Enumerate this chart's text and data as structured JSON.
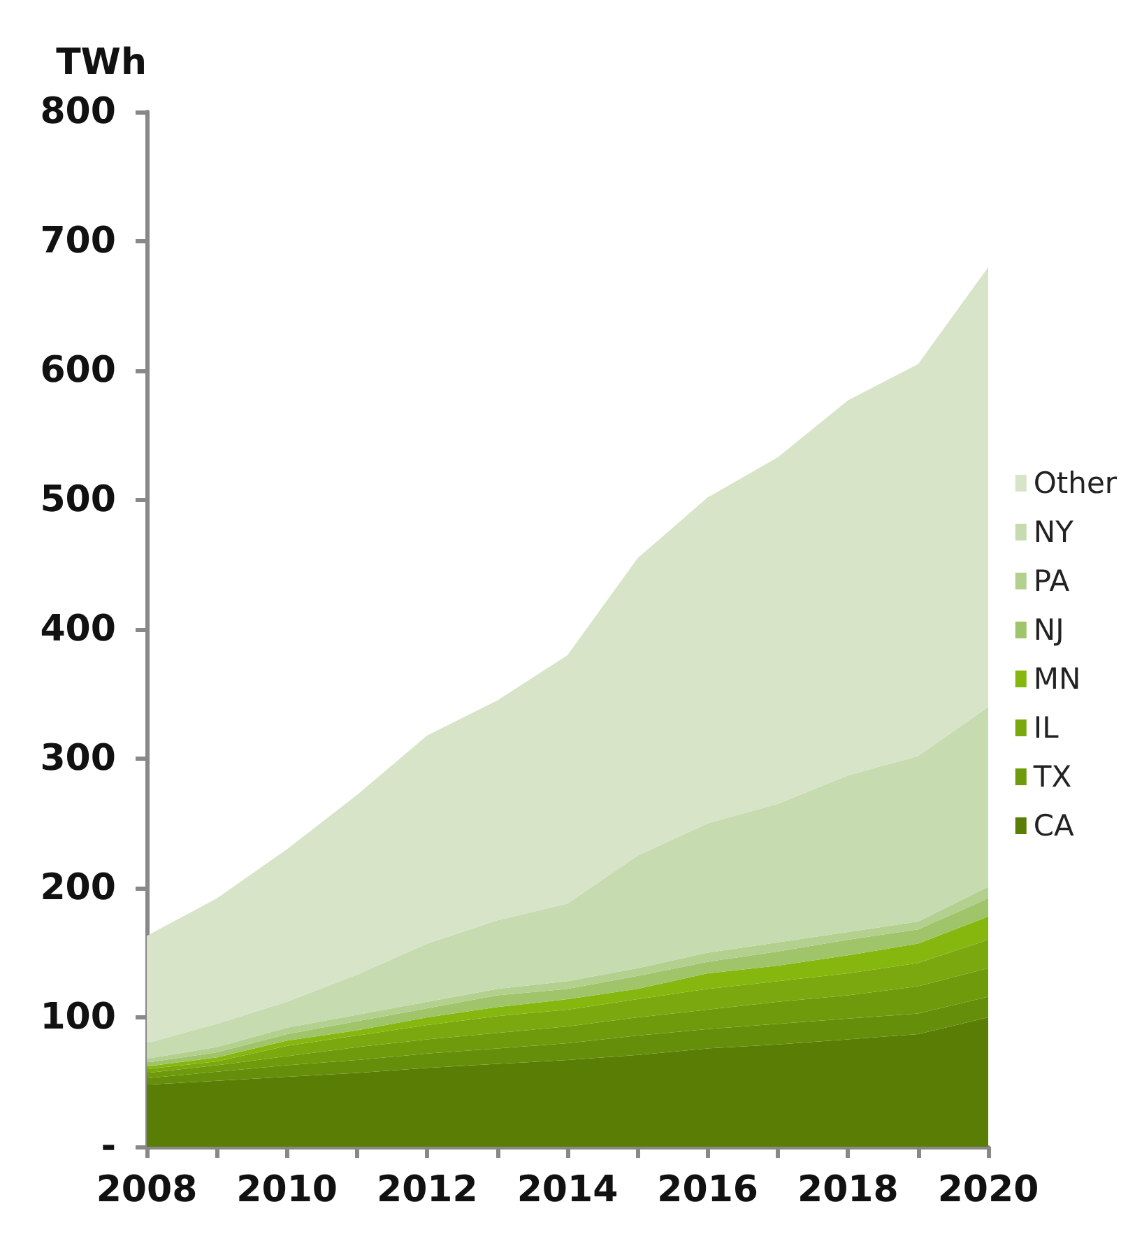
{
  "chart_data": {
    "type": "area",
    "stacked": true,
    "ylabel": "TWh",
    "x": [
      2008,
      2009,
      2010,
      2011,
      2012,
      2013,
      2014,
      2015,
      2016,
      2017,
      2018,
      2019,
      2020
    ],
    "xlim": [
      2008,
      2020
    ],
    "xticks": [
      2008,
      {
        "value": 2009,
        "label": null
      },
      2010,
      {
        "value": 2011,
        "label": null
      },
      2012,
      {
        "value": 2013,
        "label": null
      },
      2014,
      {
        "value": 2015,
        "label": null
      },
      2016,
      {
        "value": 2017,
        "label": null
      },
      2018,
      {
        "value": 2019,
        "label": null
      },
      2020
    ],
    "ylim": [
      0,
      800
    ],
    "yticks": [
      {
        "value": 0,
        "label": "-"
      },
      100,
      200,
      300,
      400,
      500,
      600,
      700,
      800
    ],
    "grid": false,
    "legend": "right",
    "series": [
      {
        "name": "CA",
        "color": "#5a7e05",
        "values": [
          48,
          51,
          54,
          57,
          61,
          64,
          67,
          71,
          76,
          79,
          83,
          87,
          100
        ]
      },
      {
        "color": "#658f0a",
        "values": [
          5,
          7,
          9,
          10,
          11,
          12,
          13,
          15,
          15,
          16,
          16,
          16,
          16
        ]
      },
      {
        "name": "TX",
        "color": "#6f9a0c",
        "values": [
          4,
          5,
          7,
          10,
          11,
          12,
          13,
          14,
          15,
          17,
          18,
          21,
          22
        ]
      },
      {
        "name": "IL",
        "color": "#7aa80e",
        "values": [
          3,
          3,
          8,
          9,
          11,
          13,
          13,
          14,
          16,
          16,
          17,
          18,
          22
        ]
      },
      {
        "name": "MN",
        "color": "#86b70f",
        "values": [
          2,
          3,
          4,
          4,
          6,
          7,
          8,
          8,
          12,
          12,
          14,
          15,
          18
        ]
      },
      {
        "name": "NJ",
        "color": "#a0c46a",
        "values": [
          3,
          4,
          5,
          7,
          7,
          9,
          8,
          10,
          9,
          11,
          12,
          11,
          14
        ]
      },
      {
        "name": "PA",
        "color": "#b3d08e",
        "values": [
          3,
          4,
          5,
          5,
          5,
          5,
          6,
          6,
          7,
          7,
          6,
          6,
          9
        ]
      },
      {
        "name": "NY",
        "color": "#c6dbb0",
        "values": [
          12,
          18,
          20,
          31,
          45,
          53,
          60,
          87,
          100,
          107,
          121,
          128,
          139
        ]
      },
      {
        "name": "Other",
        "color": "#d7e4c7",
        "values": [
          83,
          97,
          118,
          139,
          161,
          170,
          192,
          230,
          252,
          268,
          290,
          303,
          340
        ]
      }
    ]
  }
}
